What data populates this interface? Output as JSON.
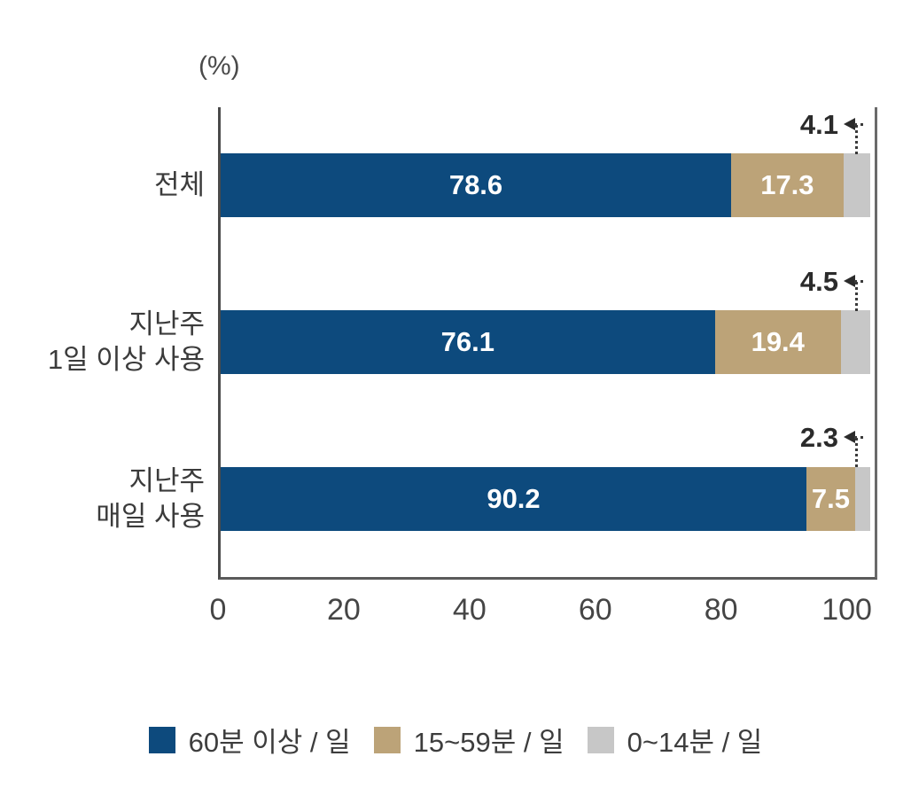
{
  "page": {
    "background": "#ffffff"
  },
  "chart_data": {
    "type": "bar",
    "orientation": "horizontal",
    "stacked": true,
    "unit_label": "(%)",
    "categories": [
      {
        "lines": [
          "전체"
        ]
      },
      {
        "lines": [
          "지난주",
          "1일 이상 사용"
        ]
      },
      {
        "lines": [
          "지난주",
          "매일 사용"
        ]
      }
    ],
    "series": [
      {
        "name": "60분 이상 / 일",
        "color": "#0d4a7d",
        "values": [
          78.6,
          76.1,
          90.2
        ],
        "label_style": "inside"
      },
      {
        "name": "15~59분 / 일",
        "color": "#bca378",
        "values": [
          17.3,
          19.4,
          7.5
        ],
        "label_style": "inside"
      },
      {
        "name": "0~14분 / 일",
        "color": "#c7c7c7",
        "values": [
          4.1,
          4.5,
          2.3
        ],
        "label_style": "callout"
      }
    ],
    "x_ticks": [
      "0",
      "20",
      "40",
      "60",
      "80",
      "100"
    ],
    "x_tick_values": [
      0,
      20,
      40,
      60,
      80,
      100
    ],
    "x_max": 104,
    "grid": false,
    "legend_position": "bottom",
    "axis_color": "#5a5a5a",
    "annotation_color": "#2b2b2b",
    "value_text_color": "#ffffff"
  },
  "legend": {
    "items": [
      {
        "label": "60분 이상 / 일",
        "color": "#0d4a7d"
      },
      {
        "label": "15~59분 / 일",
        "color": "#bca378"
      },
      {
        "label": "0~14분 / 일",
        "color": "#c7c7c7"
      }
    ]
  }
}
